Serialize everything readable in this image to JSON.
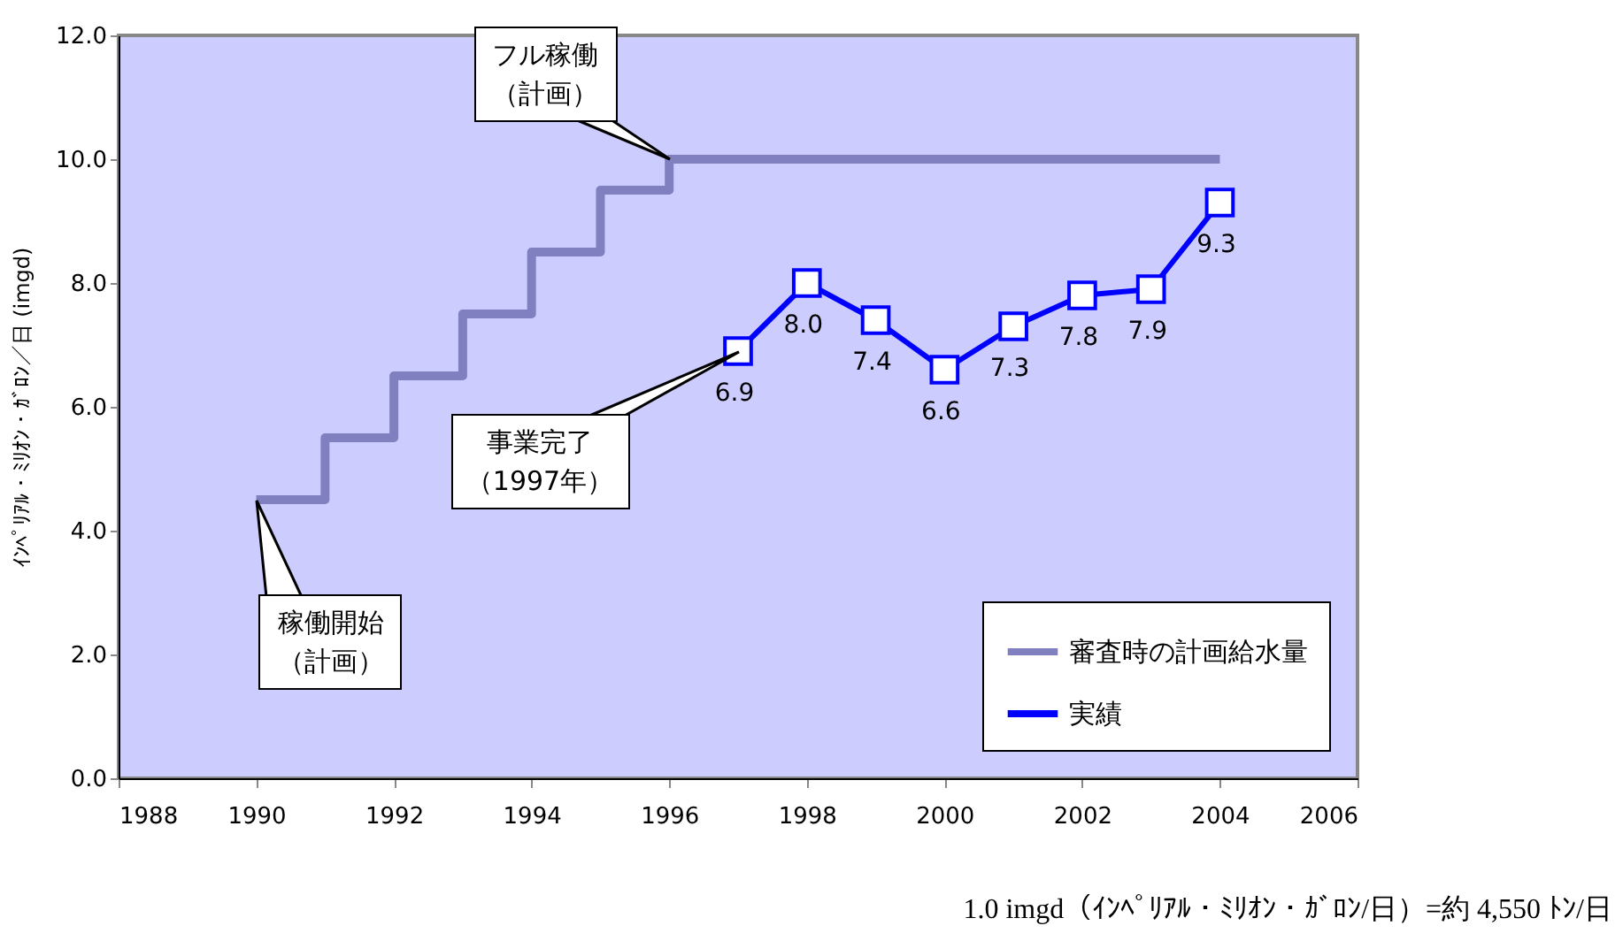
{
  "chart_data": {
    "type": "line",
    "ylabel": "ｲﾝﾍﾟﾘｱﾙ・ﾐﾘｵﾝ・ｶﾞﾛﾝ／日 (imgd)",
    "xlim": [
      1988,
      2006
    ],
    "xticks": [
      1988,
      1990,
      1992,
      1994,
      1996,
      1998,
      2000,
      2002,
      2004,
      2006
    ],
    "ylim": [
      0,
      12
    ],
    "yticks": [
      {
        "value": 0,
        "label": "0.0"
      },
      {
        "value": 2,
        "label": "2.0"
      },
      {
        "value": 4,
        "label": "4.0"
      },
      {
        "value": 6,
        "label": "6.0"
      },
      {
        "value": 8,
        "label": "8.0"
      },
      {
        "value": 10,
        "label": "10.0"
      },
      {
        "value": 12,
        "label": "12.0"
      }
    ],
    "grid": false,
    "legend": "bottom right",
    "series": [
      {
        "name": "審査時の計画給水量",
        "type": "step",
        "color": "#8080c0",
        "marker": "none",
        "x": [
          1990,
          1991,
          1992,
          1993,
          1994,
          1995,
          1996,
          1997,
          1998,
          1999,
          2000,
          2001,
          2002,
          2003,
          2004
        ],
        "values": [
          4.5,
          5.5,
          6.5,
          7.5,
          8.5,
          9.5,
          10.0,
          10.0,
          10.0,
          10.0,
          10.0,
          10.0,
          10.0,
          10.0,
          10.0
        ]
      },
      {
        "name": "実績",
        "type": "line",
        "color": "#0000ff",
        "marker": "square",
        "x": [
          1997,
          1998,
          1999,
          2000,
          2001,
          2002,
          2003,
          2004
        ],
        "values": [
          6.9,
          8.0,
          7.4,
          6.6,
          7.3,
          7.8,
          7.9,
          9.3
        ],
        "value_labels": [
          "6.9",
          "8.0",
          "7.4",
          "6.6",
          "7.3",
          "7.8",
          "7.9",
          "9.3"
        ]
      }
    ],
    "annotations": [
      {
        "text": "フル稼働（計画）",
        "x": 1996,
        "y": 10.0
      },
      {
        "text": "事業完了（1997年）",
        "x": 1997,
        "y": 6.9
      },
      {
        "text": "稼働開始（計画）",
        "x": 1990,
        "y": 4.5
      },
      "1.0 imgd（ｲﾝﾍﾟﾘｱﾙ・ﾐﾘｵﾝ・ｶﾞﾛﾝ/日）=約 4,550 ﾄﾝ/日"
    ]
  }
}
